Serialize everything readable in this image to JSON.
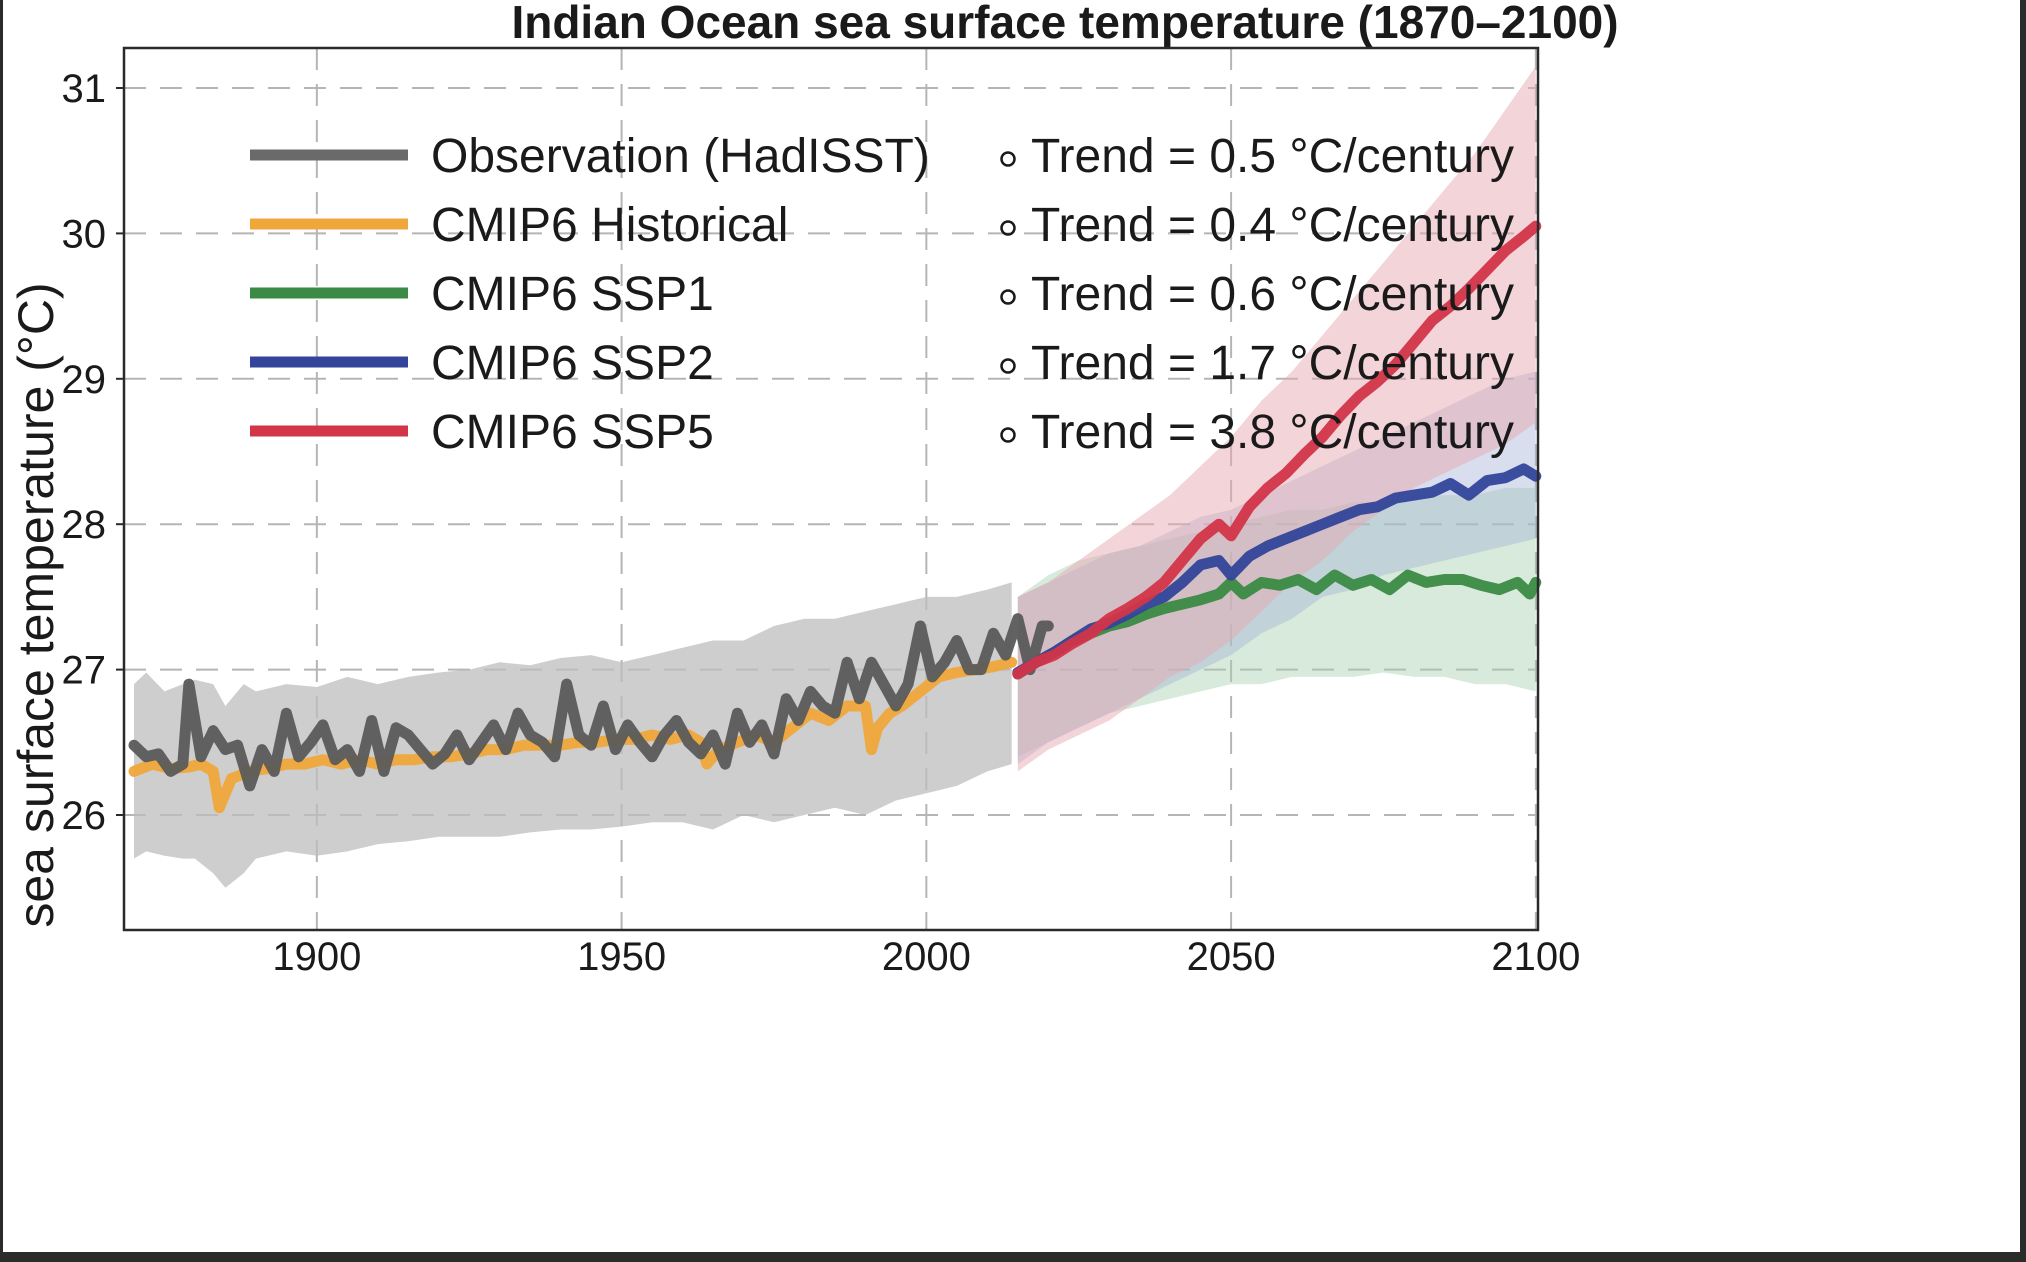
{
  "chart_data": {
    "type": "line",
    "title": "Indian Ocean sea surface temperature (1870–2100)",
    "xlabel": "",
    "ylabel": "sea surface temperature (°C)",
    "xlim": [
      1870,
      2100
    ],
    "ylim": [
      25.2,
      31.3
    ],
    "xticks": [
      1900,
      1950,
      2000,
      2050,
      2100
    ],
    "yticks": [
      26,
      27,
      28,
      29,
      30,
      31
    ],
    "grid": true,
    "legend_position": "top-left",
    "legend": [
      {
        "label": "Observation (HadISST)",
        "trend": "Trend = 0.5 °C/century",
        "color": "#6a6a6a"
      },
      {
        "label": "CMIP6 Historical",
        "trend": "Trend = 0.4 °C/century",
        "color": "#f0a73a"
      },
      {
        "label": "CMIP6 SSP1",
        "trend": "Trend = 0.6 °C/century",
        "color": "#3b8a45"
      },
      {
        "label": "CMIP6 SSP2",
        "trend": "Trend = 1.7 °C/century",
        "color": "#33449a"
      },
      {
        "label": "CMIP6 SSP5",
        "trend": "Trend = 3.8 °C/century",
        "color": "#d23548"
      }
    ],
    "bands": [
      {
        "name": "Historical spread",
        "color": "#bdbdbd",
        "opacity": 0.75,
        "x": [
          1870,
          1872,
          1875,
          1878,
          1880,
          1883,
          1885,
          1888,
          1890,
          1895,
          1900,
          1905,
          1910,
          1915,
          1920,
          1925,
          1930,
          1935,
          1940,
          1945,
          1950,
          1955,
          1960,
          1965,
          1970,
          1975,
          1980,
          1985,
          1990,
          1995,
          2000,
          2005,
          2010,
          2014
        ],
        "upper": [
          26.9,
          26.98,
          26.85,
          26.9,
          26.93,
          26.9,
          26.75,
          26.9,
          26.85,
          26.9,
          26.88,
          26.95,
          26.9,
          26.95,
          26.98,
          27.0,
          27.05,
          27.03,
          27.08,
          27.1,
          27.05,
          27.1,
          27.15,
          27.2,
          27.2,
          27.3,
          27.35,
          27.35,
          27.4,
          27.45,
          27.5,
          27.5,
          27.55,
          27.6
        ],
        "lower": [
          25.7,
          25.75,
          25.72,
          25.7,
          25.7,
          25.6,
          25.5,
          25.6,
          25.7,
          25.75,
          25.72,
          25.75,
          25.8,
          25.82,
          25.85,
          25.85,
          25.85,
          25.88,
          25.9,
          25.9,
          25.92,
          25.95,
          25.95,
          25.9,
          26.0,
          25.95,
          26.0,
          26.05,
          26.0,
          26.1,
          26.15,
          26.2,
          26.3,
          26.35
        ]
      },
      {
        "name": "SSP1 spread",
        "color": "#a8d0b0",
        "opacity": 0.45,
        "x": [
          2015,
          2020,
          2025,
          2030,
          2035,
          2040,
          2045,
          2050,
          2055,
          2060,
          2065,
          2070,
          2075,
          2080,
          2085,
          2090,
          2095,
          2100
        ],
        "upper": [
          27.5,
          27.65,
          27.75,
          27.8,
          27.85,
          27.9,
          27.95,
          28.0,
          28.05,
          28.1,
          28.1,
          28.15,
          28.15,
          28.2,
          28.2,
          28.2,
          28.25,
          28.25
        ],
        "lower": [
          26.4,
          26.5,
          26.6,
          26.7,
          26.75,
          26.8,
          26.85,
          26.9,
          26.9,
          26.95,
          26.95,
          26.95,
          26.98,
          26.95,
          26.95,
          26.9,
          26.9,
          26.85
        ]
      },
      {
        "name": "SSP2 spread",
        "color": "#a9b6d8",
        "opacity": 0.45,
        "x": [
          2015,
          2020,
          2025,
          2030,
          2035,
          2040,
          2045,
          2050,
          2055,
          2060,
          2065,
          2070,
          2075,
          2080,
          2085,
          2090,
          2095,
          2100
        ],
        "upper": [
          27.5,
          27.6,
          27.7,
          27.8,
          27.85,
          27.95,
          28.05,
          28.1,
          28.2,
          28.3,
          28.4,
          28.5,
          28.6,
          28.7,
          28.8,
          28.9,
          29.0,
          29.05
        ],
        "lower": [
          26.35,
          26.5,
          26.6,
          26.7,
          26.8,
          26.9,
          27.0,
          27.1,
          27.25,
          27.35,
          27.5,
          27.55,
          27.65,
          27.7,
          27.75,
          27.8,
          27.85,
          27.9
        ]
      },
      {
        "name": "SSP5 spread",
        "color": "#e6a9b3",
        "opacity": 0.5,
        "x": [
          2015,
          2020,
          2025,
          2030,
          2035,
          2040,
          2045,
          2050,
          2055,
          2060,
          2065,
          2070,
          2075,
          2080,
          2085,
          2090,
          2095,
          2100
        ],
        "upper": [
          27.5,
          27.6,
          27.75,
          27.9,
          28.05,
          28.2,
          28.4,
          28.6,
          28.85,
          29.05,
          29.3,
          29.55,
          29.8,
          30.05,
          30.3,
          30.55,
          30.85,
          31.15
        ],
        "lower": [
          26.3,
          26.45,
          26.55,
          26.65,
          26.8,
          26.95,
          27.05,
          27.2,
          27.4,
          27.6,
          27.75,
          27.95,
          28.1,
          28.25,
          28.35,
          28.45,
          28.55,
          28.7
        ]
      }
    ],
    "series": [
      {
        "name": "Observation (HadISST)",
        "color": "#5a5a5a",
        "opacity": 0.95,
        "x": [
          1870,
          1872,
          1874,
          1876,
          1878,
          1879,
          1881,
          1883,
          1885,
          1887,
          1889,
          1891,
          1893,
          1895,
          1897,
          1899,
          1901,
          1903,
          1905,
          1907,
          1909,
          1911,
          1913,
          1915,
          1917,
          1919,
          1921,
          1923,
          1925,
          1927,
          1929,
          1931,
          1933,
          1935,
          1937,
          1939,
          1941,
          1943,
          1945,
          1947,
          1949,
          1951,
          1953,
          1955,
          1957,
          1959,
          1961,
          1963,
          1965,
          1967,
          1969,
          1971,
          1973,
          1975,
          1977,
          1979,
          1981,
          1983,
          1985,
          1987,
          1989,
          1991,
          1993,
          1995,
          1997,
          1999,
          2001,
          2003,
          2005,
          2007,
          2009,
          2011,
          2013,
          2015,
          2017,
          2019,
          2020
        ],
        "y": [
          26.48,
          26.4,
          26.42,
          26.3,
          26.35,
          26.9,
          26.4,
          26.58,
          26.45,
          26.48,
          26.2,
          26.45,
          26.3,
          26.7,
          26.4,
          26.5,
          26.62,
          26.38,
          26.45,
          26.3,
          26.65,
          26.3,
          26.6,
          26.55,
          26.45,
          26.35,
          26.42,
          26.55,
          26.38,
          26.5,
          26.62,
          26.45,
          26.7,
          26.55,
          26.5,
          26.4,
          26.9,
          26.55,
          26.48,
          26.75,
          26.45,
          26.62,
          26.5,
          26.4,
          26.55,
          26.65,
          26.5,
          26.42,
          26.55,
          26.35,
          26.7,
          26.5,
          26.62,
          26.42,
          26.8,
          26.65,
          26.85,
          26.75,
          26.7,
          27.05,
          26.8,
          27.05,
          26.9,
          26.75,
          26.9,
          27.3,
          26.95,
          27.05,
          27.2,
          27.0,
          27.0,
          27.25,
          27.1,
          27.35,
          27.0,
          27.3,
          27.3
        ]
      },
      {
        "name": "CMIP6 Historical",
        "color": "#f0a73a",
        "opacity": 0.95,
        "x": [
          1870,
          1873,
          1876,
          1879,
          1881,
          1883,
          1884,
          1886,
          1889,
          1892,
          1895,
          1898,
          1901,
          1904,
          1907,
          1910,
          1913,
          1916,
          1919,
          1922,
          1925,
          1928,
          1931,
          1934,
          1937,
          1940,
          1943,
          1946,
          1949,
          1952,
          1955,
          1958,
          1961,
          1963,
          1964,
          1966,
          1969,
          1972,
          1975,
          1978,
          1981,
          1984,
          1987,
          1990,
          1991,
          1992,
          1994,
          1996,
          1999,
          2002,
          2005,
          2008,
          2011,
          2014
        ],
        "y": [
          26.3,
          26.35,
          26.32,
          26.33,
          26.35,
          26.3,
          26.05,
          26.25,
          26.3,
          26.32,
          26.35,
          26.35,
          26.38,
          26.35,
          26.38,
          26.35,
          26.38,
          26.38,
          26.4,
          26.4,
          26.42,
          26.45,
          26.45,
          26.48,
          26.48,
          26.48,
          26.5,
          26.5,
          26.52,
          26.52,
          26.55,
          26.52,
          26.55,
          26.5,
          26.35,
          26.45,
          26.5,
          26.55,
          26.5,
          26.6,
          26.7,
          26.65,
          26.75,
          26.75,
          26.45,
          26.6,
          26.7,
          26.75,
          26.85,
          26.95,
          26.98,
          27.0,
          27.02,
          27.05
        ]
      },
      {
        "name": "CMIP6 SSP1",
        "color": "#3b8a45",
        "opacity": 0.95,
        "x": [
          2015,
          2018,
          2021,
          2024,
          2027,
          2030,
          2033,
          2036,
          2039,
          2042,
          2045,
          2048,
          2050,
          2052,
          2055,
          2058,
          2061,
          2064,
          2067,
          2070,
          2073,
          2076,
          2079,
          2082,
          2085,
          2088,
          2091,
          2094,
          2097,
          2099,
          2100
        ],
        "y": [
          26.97,
          27.05,
          27.12,
          27.2,
          27.25,
          27.3,
          27.33,
          27.38,
          27.42,
          27.45,
          27.48,
          27.52,
          27.6,
          27.52,
          27.6,
          27.58,
          27.62,
          27.55,
          27.65,
          27.58,
          27.62,
          27.55,
          27.65,
          27.6,
          27.62,
          27.62,
          27.58,
          27.55,
          27.6,
          27.52,
          27.6
        ]
      },
      {
        "name": "CMIP6 SSP2",
        "color": "#33449a",
        "opacity": 0.95,
        "x": [
          2015,
          2018,
          2021,
          2024,
          2027,
          2030,
          2033,
          2036,
          2039,
          2042,
          2045,
          2048,
          2050,
          2053,
          2056,
          2059,
          2062,
          2065,
          2068,
          2071,
          2074,
          2077,
          2080,
          2083,
          2086,
          2089,
          2092,
          2095,
          2098,
          2100
        ],
        "y": [
          26.98,
          27.05,
          27.12,
          27.2,
          27.28,
          27.32,
          27.38,
          27.45,
          27.5,
          27.6,
          27.72,
          27.75,
          27.65,
          27.78,
          27.85,
          27.9,
          27.95,
          28.0,
          28.05,
          28.1,
          28.12,
          28.18,
          28.2,
          28.22,
          28.28,
          28.2,
          28.3,
          28.32,
          28.38,
          28.33
        ]
      },
      {
        "name": "CMIP6 SSP5",
        "color": "#d23548",
        "opacity": 0.95,
        "x": [
          2015,
          2018,
          2021,
          2024,
          2027,
          2030,
          2033,
          2036,
          2039,
          2042,
          2045,
          2048,
          2050,
          2053,
          2056,
          2059,
          2062,
          2065,
          2068,
          2071,
          2074,
          2077,
          2080,
          2083,
          2086,
          2089,
          2092,
          2095,
          2098,
          2100
        ],
        "y": [
          26.97,
          27.05,
          27.1,
          27.18,
          27.25,
          27.35,
          27.42,
          27.5,
          27.6,
          27.75,
          27.9,
          28.0,
          27.92,
          28.12,
          28.25,
          28.35,
          28.48,
          28.6,
          28.75,
          28.88,
          28.98,
          29.1,
          29.25,
          29.4,
          29.5,
          29.62,
          29.75,
          29.88,
          29.98,
          30.05
        ]
      }
    ]
  }
}
